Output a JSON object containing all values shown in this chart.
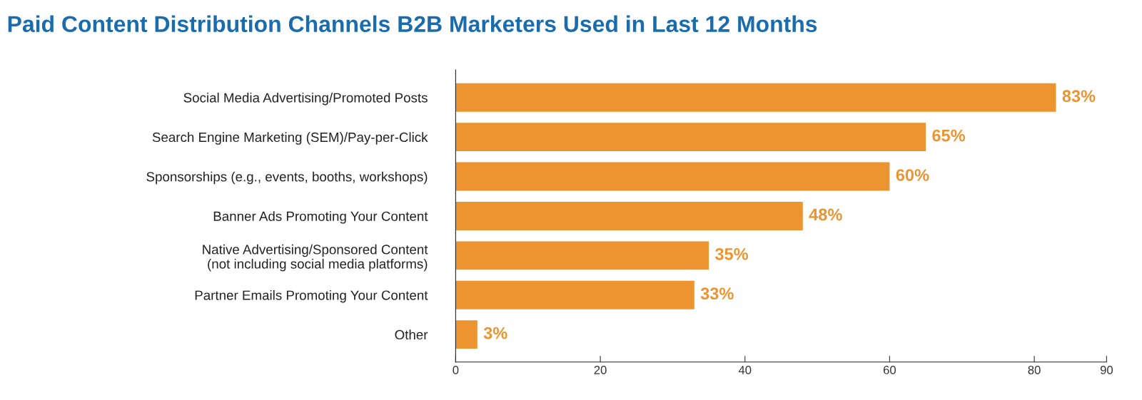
{
  "chart_data": {
    "type": "bar",
    "orientation": "horizontal",
    "title": "Paid Content Distribution Channels B2B Marketers Used in Last 12 Months",
    "categories": [
      "Social Media Advertising/Promoted Posts",
      "Search Engine Marketing (SEM)/Pay-per-Click",
      "Sponsorships (e.g., events, booths, workshops)",
      "Banner Ads Promoting Your Content",
      "Native Advertising/Sponsored Content\n(not including social media platforms)",
      "Partner Emails Promoting Your Content",
      "Other"
    ],
    "values": [
      83,
      65,
      60,
      48,
      35,
      33,
      3
    ],
    "value_labels": [
      "83%",
      "65%",
      "60%",
      "48%",
      "35%",
      "33%",
      "3%"
    ],
    "color": "#eb9430",
    "xlim": [
      0,
      90
    ],
    "xticks": [
      0,
      20,
      40,
      60,
      80,
      90
    ],
    "grid": false,
    "legend": false
  }
}
